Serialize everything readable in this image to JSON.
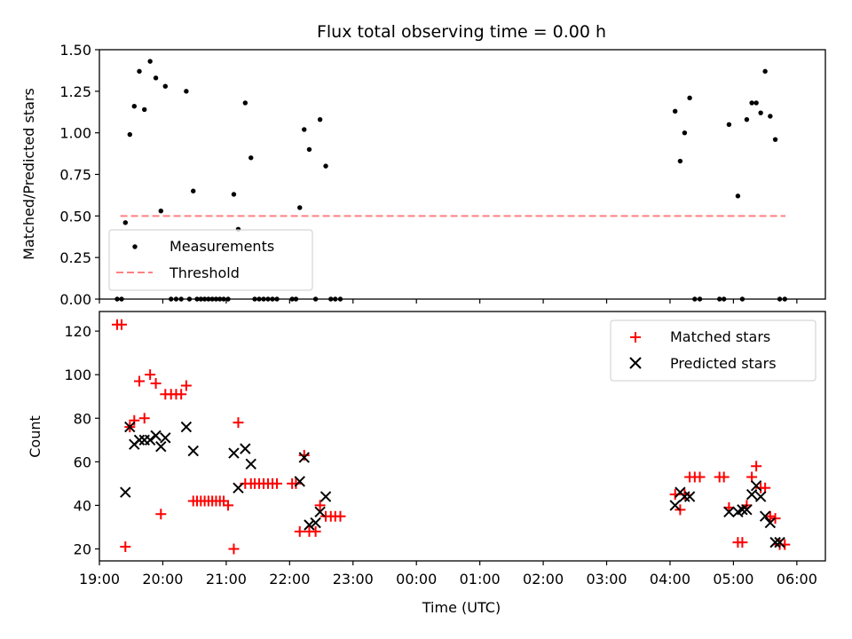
{
  "chart_data": [
    {
      "type": "scatter",
      "title": "Flux total observing time = 0.00 h",
      "xlabel": "",
      "ylabel": "Matched/Predicted stars",
      "xlim": [
        19.0,
        30.45
      ],
      "ylim": [
        0.0,
        1.5
      ],
      "yticks": [
        0.0,
        0.25,
        0.5,
        0.75,
        1.0,
        1.25,
        1.5
      ],
      "ytick_labels": [
        "0.00",
        "0.25",
        "0.50",
        "0.75",
        "1.00",
        "1.25",
        "1.50"
      ],
      "xticks": [
        19,
        20,
        21,
        22,
        23,
        24,
        25,
        26,
        27,
        28,
        29,
        30
      ],
      "legend": {
        "position": "lower-left",
        "entries": [
          "Measurements",
          "Threshold"
        ]
      },
      "threshold": {
        "name": "Threshold",
        "y": 0.5,
        "x": [
          19.33,
          29.82
        ],
        "color": "#ff8080"
      },
      "series": [
        {
          "name": "Measurements",
          "color": "#000000",
          "x": [
            19.28,
            19.35,
            19.41,
            19.48,
            19.55,
            19.63,
            19.71,
            19.8,
            19.89,
            19.97,
            20.04,
            20.13,
            20.21,
            20.29,
            20.37,
            20.42,
            20.48,
            20.54,
            20.6,
            20.66,
            20.72,
            20.78,
            20.84,
            20.9,
            20.96,
            21.03,
            21.12,
            21.19,
            21.3,
            21.39,
            21.45,
            21.52,
            21.59,
            21.66,
            21.73,
            21.8,
            22.04,
            22.1,
            22.16,
            22.23,
            22.31,
            22.41,
            22.48,
            22.57,
            22.65,
            22.72,
            22.8,
            28.08,
            28.16,
            28.23,
            28.31,
            28.39,
            28.47,
            28.78,
            28.85,
            28.93,
            29.07,
            29.14,
            29.21,
            29.29,
            29.36,
            29.43,
            29.5,
            29.58,
            29.66,
            29.73,
            29.81
          ],
          "y": [
            0.0,
            0.0,
            0.46,
            0.99,
            1.16,
            1.37,
            1.14,
            1.43,
            1.33,
            0.53,
            1.28,
            0.0,
            0.0,
            0.0,
            1.25,
            0.0,
            0.65,
            0.0,
            0.0,
            0.0,
            0.0,
            0.0,
            0.0,
            0.0,
            0.0,
            0.0,
            0.63,
            0.42,
            1.18,
            0.85,
            0.0,
            0.0,
            0.0,
            0.0,
            0.0,
            0.0,
            0.0,
            0.0,
            0.55,
            1.02,
            0.9,
            0.0,
            1.08,
            0.8,
            0.0,
            0.0,
            0.0,
            1.13,
            0.83,
            1.0,
            1.21,
            0.0,
            0.0,
            0.0,
            0.0,
            1.05,
            0.62,
            0.0,
            1.08,
            1.18,
            1.18,
            1.12,
            1.37,
            1.1,
            0.96,
            0.0,
            0.0
          ]
        }
      ]
    },
    {
      "type": "scatter",
      "title": "",
      "xlabel": "Time (UTC)",
      "ylabel": "Count",
      "xlim": [
        19.0,
        30.45
      ],
      "ylim": [
        14.5,
        129.0
      ],
      "yticks": [
        20,
        40,
        60,
        80,
        100,
        120
      ],
      "ytick_labels": [
        "20",
        "40",
        "60",
        "80",
        "100",
        "120"
      ],
      "xticks": [
        19,
        20,
        21,
        22,
        23,
        24,
        25,
        26,
        27,
        28,
        29,
        30
      ],
      "xtick_labels": [
        "19:00",
        "20:00",
        "21:00",
        "22:00",
        "23:00",
        "00:00",
        "01:00",
        "02:00",
        "03:00",
        "04:00",
        "05:00",
        "06:00"
      ],
      "legend": {
        "position": "top-right",
        "entries": [
          "Matched stars",
          "Predicted stars"
        ]
      },
      "series": [
        {
          "name": "Matched stars",
          "marker": "plus",
          "color": "#ff0000",
          "x": [
            19.28,
            19.35,
            19.41,
            19.48,
            19.55,
            19.63,
            19.71,
            19.8,
            19.89,
            19.97,
            20.04,
            20.13,
            20.21,
            20.29,
            20.37,
            20.48,
            20.54,
            20.6,
            20.66,
            20.72,
            20.78,
            20.84,
            20.9,
            20.96,
            21.03,
            21.12,
            21.19,
            21.3,
            21.39,
            21.45,
            21.52,
            21.59,
            21.66,
            21.73,
            21.8,
            22.04,
            22.1,
            22.16,
            22.23,
            22.31,
            22.41,
            22.48,
            22.57,
            22.65,
            22.72,
            22.8,
            28.08,
            28.16,
            28.23,
            28.31,
            28.39,
            28.47,
            28.78,
            28.85,
            28.93,
            29.07,
            29.14,
            29.21,
            29.29,
            29.36,
            29.43,
            29.5,
            29.58,
            29.66,
            29.73,
            29.81
          ],
          "y": [
            123,
            123,
            21,
            76,
            79,
            97,
            80,
            100,
            96,
            36,
            91,
            91,
            91,
            91,
            95,
            42,
            42,
            42,
            42,
            42,
            42,
            42,
            42,
            42,
            40,
            20,
            78,
            50,
            50,
            50,
            50,
            50,
            50,
            50,
            50,
            50,
            50,
            28,
            63,
            28,
            28,
            40,
            35,
            35,
            35,
            35,
            45,
            38,
            45,
            53,
            53,
            53,
            53,
            53,
            39,
            23,
            23,
            40,
            53,
            58,
            48,
            48,
            35,
            34,
            22,
            22
          ]
        },
        {
          "name": "Predicted stars",
          "marker": "x",
          "color": "#000000",
          "x": [
            19.41,
            19.48,
            19.55,
            19.63,
            19.71,
            19.8,
            19.89,
            19.97,
            20.04,
            20.37,
            20.48,
            21.12,
            21.19,
            21.3,
            21.39,
            22.16,
            22.23,
            22.31,
            22.41,
            22.48,
            22.57,
            28.08,
            28.16,
            28.23,
            28.31,
            28.93,
            29.07,
            29.14,
            29.21,
            29.29,
            29.36,
            29.43,
            29.5,
            29.58,
            29.66,
            29.73
          ],
          "y": [
            46,
            76,
            68,
            70,
            70,
            70,
            72,
            67,
            71,
            76,
            65,
            64,
            48,
            66,
            59,
            51,
            62,
            31,
            32,
            37,
            44,
            40,
            46,
            44,
            44,
            37,
            37,
            38,
            38,
            45,
            49,
            44,
            35,
            32,
            23,
            23
          ]
        }
      ]
    }
  ]
}
